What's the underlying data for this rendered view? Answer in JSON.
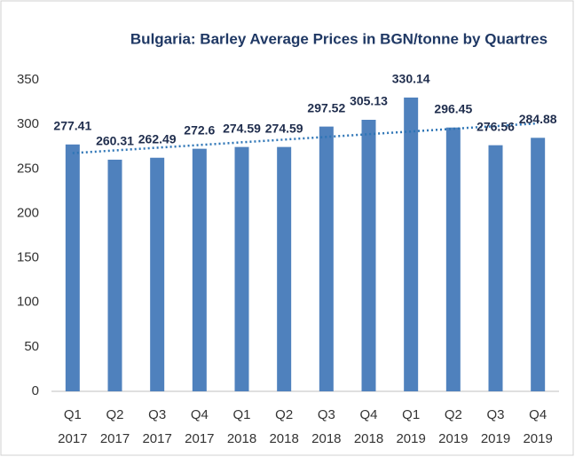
{
  "chart_data": {
    "type": "bar",
    "title": "Bulgaria: Barley Average Prices in BGN/tonne by Quartres",
    "categories": [
      [
        "Q1",
        "2017"
      ],
      [
        "Q2",
        "2017"
      ],
      [
        "Q3",
        "2017"
      ],
      [
        "Q4",
        "2017"
      ],
      [
        "Q1",
        "2018"
      ],
      [
        "Q2",
        "2018"
      ],
      [
        "Q3",
        "2018"
      ],
      [
        "Q4",
        "2018"
      ],
      [
        "Q1",
        "2019"
      ],
      [
        "Q2",
        "2019"
      ],
      [
        "Q3",
        "2019"
      ],
      [
        "Q4",
        "2019"
      ]
    ],
    "values": [
      277.41,
      260.31,
      262.49,
      272.6,
      274.59,
      274.59,
      297.52,
      305.13,
      330.14,
      296.45,
      276.56,
      284.88
    ],
    "color": "#4f81bd",
    "trendline": true,
    "trendline_color": "#2e75b6",
    "ylim": [
      0,
      350
    ],
    "yticks": [
      0,
      50,
      100,
      150,
      200,
      250,
      300,
      350
    ],
    "grid": false
  }
}
